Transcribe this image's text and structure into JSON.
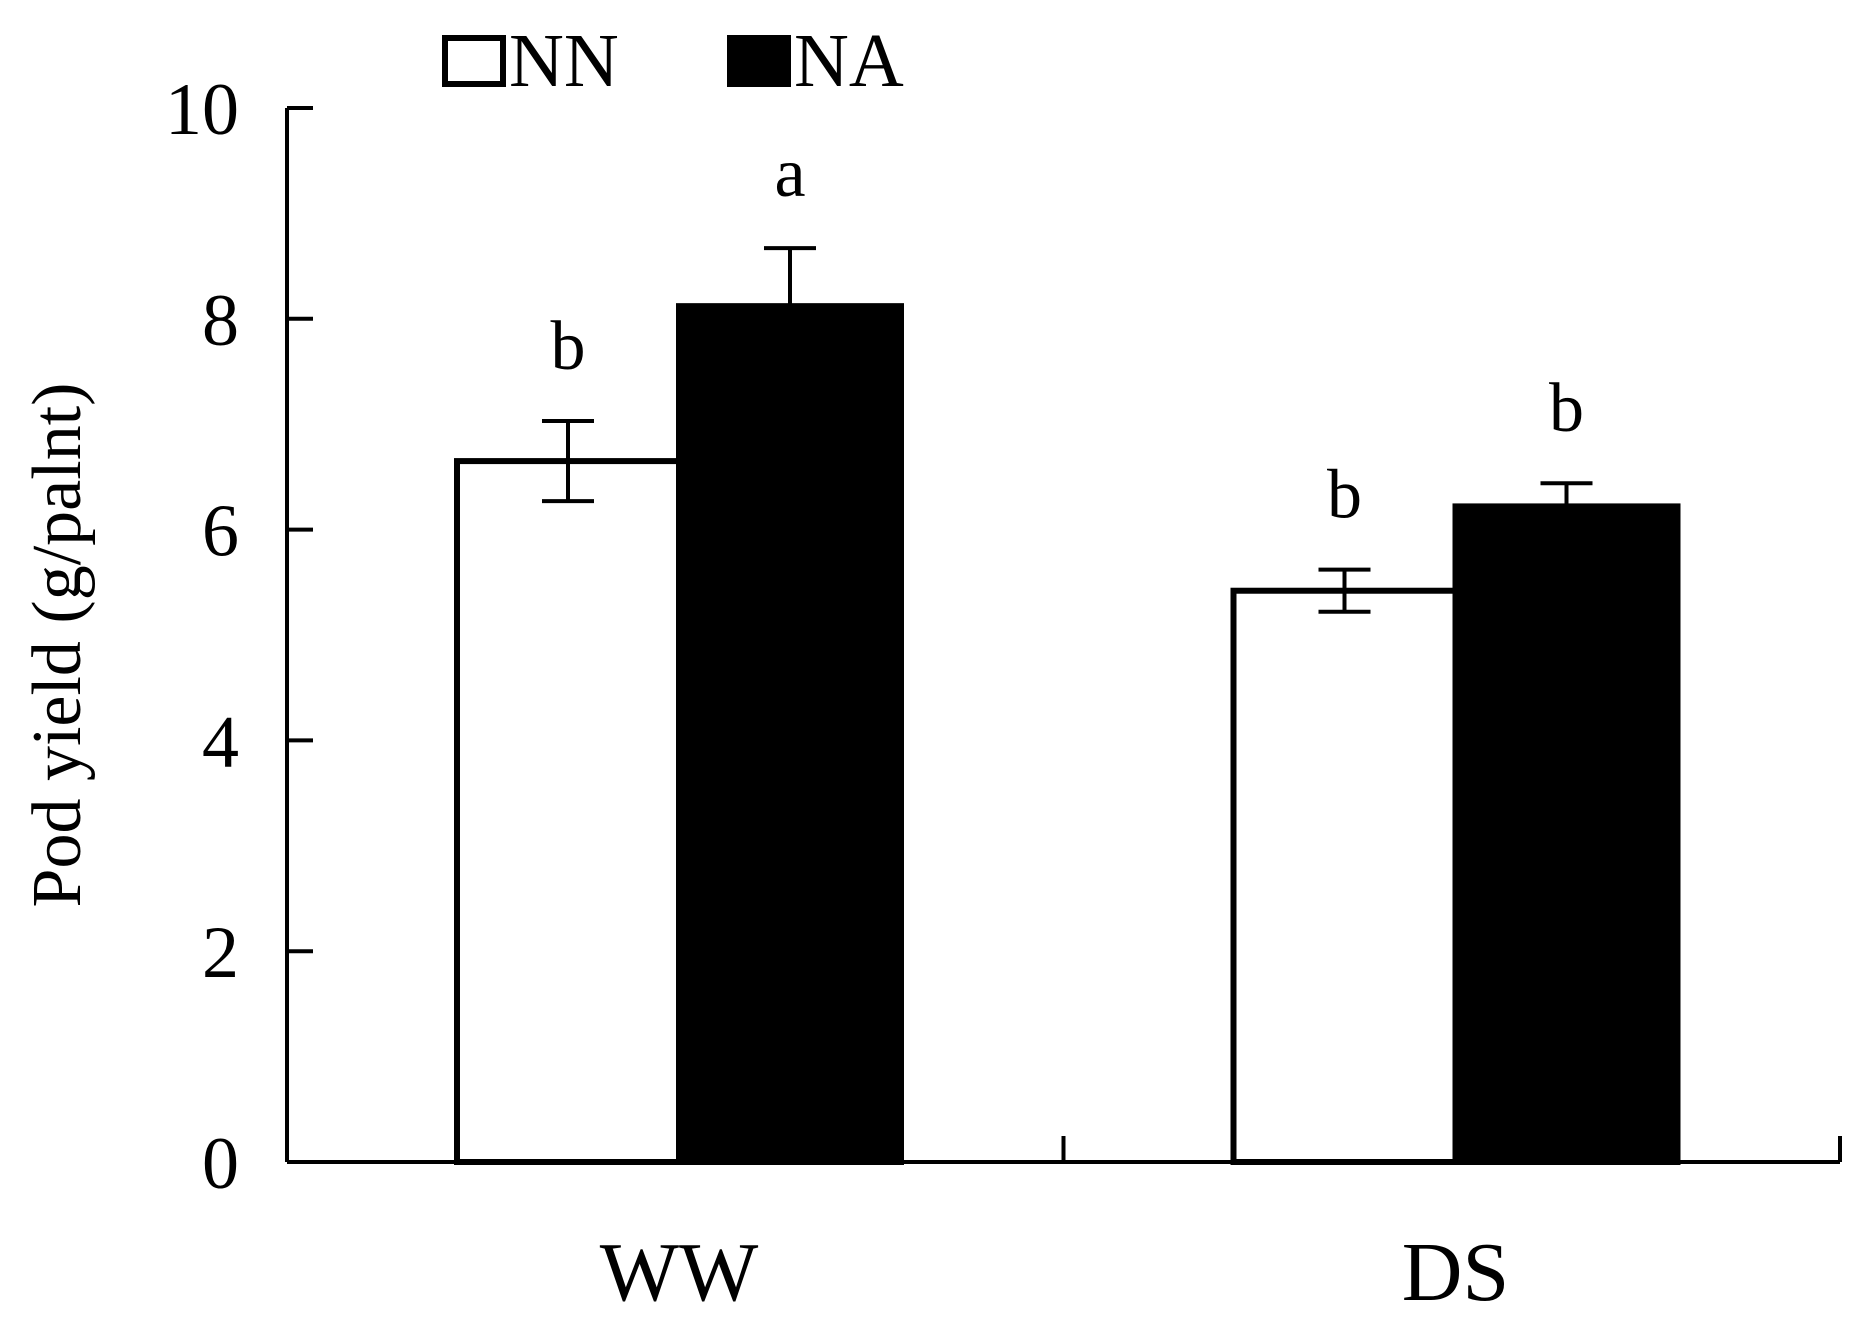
{
  "chart_data": {
    "type": "bar",
    "categories": [
      "WW",
      "DS"
    ],
    "series": [
      {
        "name": "NN",
        "color": "#ffffff",
        "values": [
          6.65,
          5.42
        ],
        "errors": [
          0.38,
          0.2
        ],
        "labels": [
          "b",
          "b"
        ]
      },
      {
        "name": "NA",
        "color": "#000000",
        "values": [
          8.12,
          6.22
        ],
        "errors": [
          0.55,
          0.22
        ],
        "labels": [
          "a",
          "b"
        ]
      }
    ],
    "ylabel": "Pod yield (g/palnt)",
    "xlabel": "",
    "ylim": [
      0,
      10
    ],
    "yticks": [
      0,
      2,
      4,
      6,
      8,
      10
    ],
    "grid": false,
    "legend_position": "top-left"
  }
}
